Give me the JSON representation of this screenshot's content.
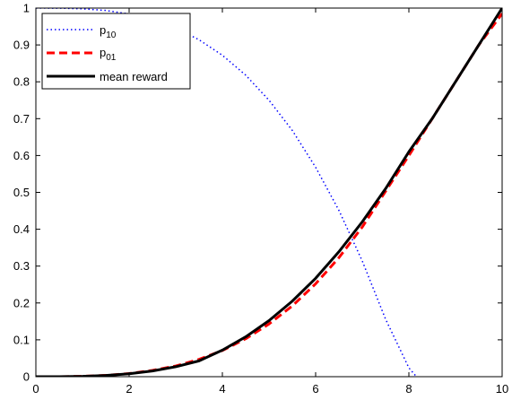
{
  "chart_data": {
    "type": "line",
    "title": "",
    "xlabel": "",
    "ylabel": "",
    "xlim": [
      0,
      10
    ],
    "ylim": [
      0,
      1
    ],
    "xticks": [
      0,
      2,
      4,
      6,
      8,
      10
    ],
    "yticks": [
      0,
      0.1,
      0.2,
      0.3,
      0.4,
      0.5,
      0.6,
      0.7,
      0.8,
      0.9,
      1
    ],
    "xtick_labels": [
      "0",
      "2",
      "4",
      "6",
      "8",
      "10"
    ],
    "ytick_labels": [
      "0",
      "0.1",
      "0.2",
      "0.3",
      "0.4",
      "0.5",
      "0.6",
      "0.7",
      "0.8",
      "0.9",
      "1"
    ],
    "grid": false,
    "legend_position": "top-left",
    "x": [
      0,
      0.5,
      1,
      1.5,
      2,
      2.5,
      3,
      3.5,
      4,
      4.5,
      5,
      5.5,
      6,
      6.5,
      7,
      7.5,
      8,
      8.5,
      9,
      9.5,
      10
    ],
    "series": [
      {
        "name": "p",
        "name_sub": "10",
        "style": "dotted",
        "color": "#0000ff",
        "values": [
          1.0,
          0.9997,
          0.998,
          0.9935,
          0.984,
          0.969,
          0.946,
          0.914,
          0.872,
          0.818,
          0.75,
          0.668,
          0.568,
          0.451,
          0.314,
          0.156,
          0.024,
          -0.05,
          -0.05,
          -0.05,
          0.0
        ]
      },
      {
        "name": "p",
        "name_sub": "01",
        "style": "dashed",
        "color": "#ff0000",
        "values": [
          0.0,
          0.0,
          0.001,
          0.0035,
          0.0085,
          0.017,
          0.029,
          0.047,
          0.071,
          0.103,
          0.143,
          0.192,
          0.252,
          0.323,
          0.406,
          0.503,
          0.6,
          0.7,
          0.8,
          0.9,
          0.985
        ]
      },
      {
        "name": "mean reward",
        "style": "solid",
        "color": "#000000",
        "values": [
          0.0,
          0.0001,
          0.001,
          0.0034,
          0.008,
          0.0156,
          0.027,
          0.0429,
          0.072,
          0.108,
          0.152,
          0.205,
          0.267,
          0.339,
          0.42,
          0.51,
          0.61,
          0.7,
          0.8,
          0.9,
          1.0
        ]
      }
    ]
  }
}
